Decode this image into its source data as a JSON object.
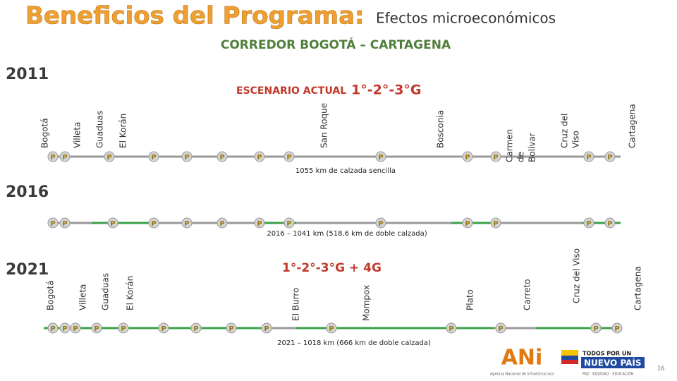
{
  "header": {
    "title": "Beneficios del Programa:",
    "subtitle": "Efectos microeconómicos",
    "corridor": "CORREDOR BOGOTÁ – CARTAGENA"
  },
  "toll_label": "P",
  "scenarios": [
    {
      "year": "2011",
      "label": "ESCENARIO ACTUAL",
      "label_gen": "1°-2°-3°G",
      "towns": [
        [
          "Bogotá"
        ],
        [
          "Villeta"
        ],
        [
          "Guaduas"
        ],
        [
          "El Korán"
        ],
        [
          "San Roque"
        ],
        [
          "Bosconia"
        ],
        [
          "Carmen",
          "de",
          "Bolívar"
        ],
        [
          "Cruz del",
          "Viso"
        ],
        [
          "Cartagena"
        ]
      ],
      "note": "1055 km de calzada sencilla"
    },
    {
      "year": "2016",
      "note": "2016 – 1041 km (518,6 km de doble calzada)"
    },
    {
      "year": "2021",
      "label_gen": "1°-2°-3°G + 4G",
      "towns": [
        [
          "Bogotá"
        ],
        [
          "Villeta"
        ],
        [
          "Guaduas"
        ],
        [
          "El Korán"
        ],
        [
          "El Burro"
        ],
        [
          "Mompox"
        ],
        [
          "Plato"
        ],
        [
          "Carreto"
        ],
        [
          "Cruz del Viso"
        ],
        [
          "Cartagena"
        ]
      ],
      "note": "2021 – 1018 km (666 km de doble calzada)"
    }
  ],
  "logos": {
    "ani": "ANi",
    "ani_name": "Agencia Nacional de Infraestructura",
    "gov_line1": "TODOS POR UN",
    "gov_line2": "NUEVO PAÍS",
    "gov_line3": "PAZ · EQUIDAD · EDUCACIÓN"
  },
  "page_number": "16"
}
